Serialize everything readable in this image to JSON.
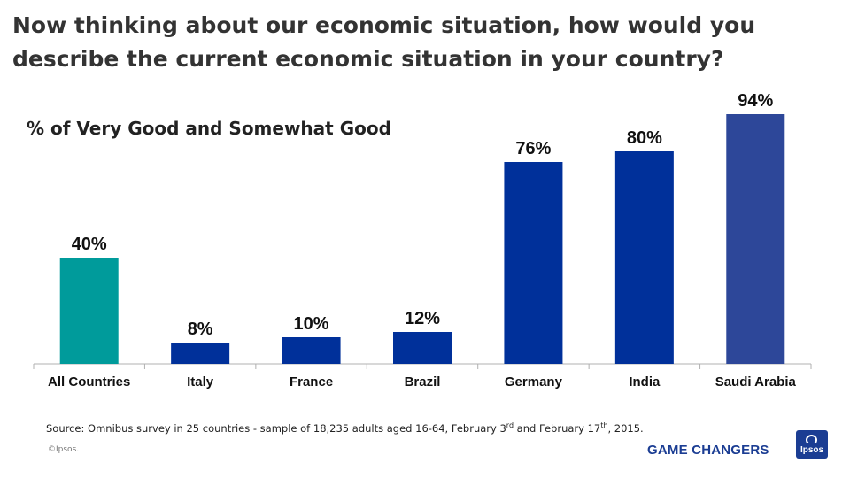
{
  "slide": {
    "title": "Now thinking about our economic situation, how would you describe the current economic situation in your country?",
    "source_prefix": "Source: Omnibus survey in 25 countries - sample of 18,235 adults aged 16-64,  February 3",
    "source_sup1": "rd",
    "source_mid": " and February 17",
    "source_sup2": "th",
    "source_suffix": ", 2015.",
    "copyright": "©Ipsos.",
    "tagline": "GAME CHANGERS",
    "logo_text": "Ipsos"
  },
  "chart_data": {
    "type": "bar",
    "title": "% of Very Good and Somewhat Good",
    "xlabel": "",
    "ylabel": "",
    "ylim": [
      0,
      100
    ],
    "grid": false,
    "categories": [
      "All Countries",
      "Italy",
      "France",
      "Brazil",
      "Germany",
      "India",
      "Saudi Arabia"
    ],
    "values": [
      40,
      8,
      10,
      12,
      76,
      80,
      94
    ],
    "data_labels": [
      "40%",
      "8%",
      "10%",
      "12%",
      "76%",
      "80%",
      "94%"
    ],
    "colors": [
      "#009b9b",
      "#00309a",
      "#00309a",
      "#00309a",
      "#00309a",
      "#00309a",
      "#2d4799"
    ]
  }
}
